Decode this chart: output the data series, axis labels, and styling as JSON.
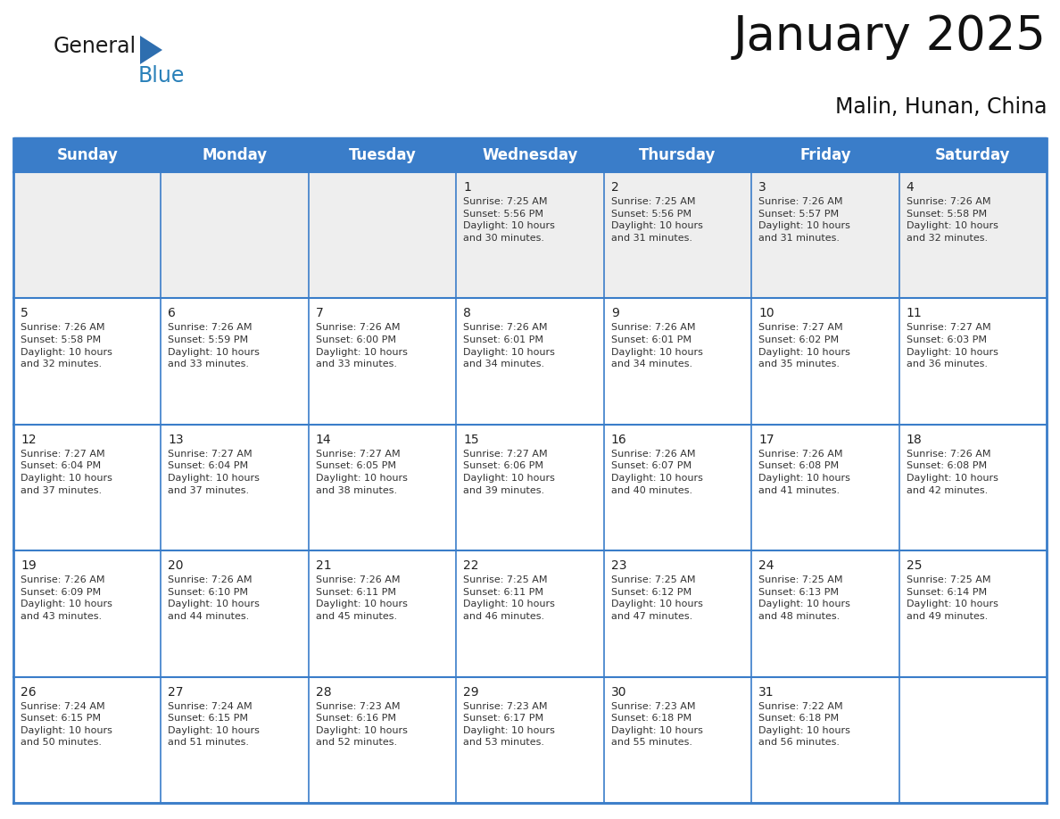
{
  "title": "January 2025",
  "subtitle": "Malin, Hunan, China",
  "header_color": "#3A7DC9",
  "header_text_color": "#FFFFFF",
  "border_color": "#3A7DC9",
  "logo_text_color": "#1a1a1a",
  "logo_blue_color": "#2980B9",
  "triangle_color": "#2E6EAF",
  "row1_bg": "#EEEEEE",
  "row_bg": "#FFFFFF",
  "day_names": [
    "Sunday",
    "Monday",
    "Tuesday",
    "Wednesday",
    "Thursday",
    "Friday",
    "Saturday"
  ],
  "title_fontsize": 38,
  "subtitle_fontsize": 17,
  "header_fontsize": 12,
  "day_num_fontsize": 10,
  "cell_text_fontsize": 8,
  "weeks": [
    [
      {
        "day": "",
        "info": ""
      },
      {
        "day": "",
        "info": ""
      },
      {
        "day": "",
        "info": ""
      },
      {
        "day": "1",
        "info": "Sunrise: 7:25 AM\nSunset: 5:56 PM\nDaylight: 10 hours\nand 30 minutes."
      },
      {
        "day": "2",
        "info": "Sunrise: 7:25 AM\nSunset: 5:56 PM\nDaylight: 10 hours\nand 31 minutes."
      },
      {
        "day": "3",
        "info": "Sunrise: 7:26 AM\nSunset: 5:57 PM\nDaylight: 10 hours\nand 31 minutes."
      },
      {
        "day": "4",
        "info": "Sunrise: 7:26 AM\nSunset: 5:58 PM\nDaylight: 10 hours\nand 32 minutes."
      }
    ],
    [
      {
        "day": "5",
        "info": "Sunrise: 7:26 AM\nSunset: 5:58 PM\nDaylight: 10 hours\nand 32 minutes."
      },
      {
        "day": "6",
        "info": "Sunrise: 7:26 AM\nSunset: 5:59 PM\nDaylight: 10 hours\nand 33 minutes."
      },
      {
        "day": "7",
        "info": "Sunrise: 7:26 AM\nSunset: 6:00 PM\nDaylight: 10 hours\nand 33 minutes."
      },
      {
        "day": "8",
        "info": "Sunrise: 7:26 AM\nSunset: 6:01 PM\nDaylight: 10 hours\nand 34 minutes."
      },
      {
        "day": "9",
        "info": "Sunrise: 7:26 AM\nSunset: 6:01 PM\nDaylight: 10 hours\nand 34 minutes."
      },
      {
        "day": "10",
        "info": "Sunrise: 7:27 AM\nSunset: 6:02 PM\nDaylight: 10 hours\nand 35 minutes."
      },
      {
        "day": "11",
        "info": "Sunrise: 7:27 AM\nSunset: 6:03 PM\nDaylight: 10 hours\nand 36 minutes."
      }
    ],
    [
      {
        "day": "12",
        "info": "Sunrise: 7:27 AM\nSunset: 6:04 PM\nDaylight: 10 hours\nand 37 minutes."
      },
      {
        "day": "13",
        "info": "Sunrise: 7:27 AM\nSunset: 6:04 PM\nDaylight: 10 hours\nand 37 minutes."
      },
      {
        "day": "14",
        "info": "Sunrise: 7:27 AM\nSunset: 6:05 PM\nDaylight: 10 hours\nand 38 minutes."
      },
      {
        "day": "15",
        "info": "Sunrise: 7:27 AM\nSunset: 6:06 PM\nDaylight: 10 hours\nand 39 minutes."
      },
      {
        "day": "16",
        "info": "Sunrise: 7:26 AM\nSunset: 6:07 PM\nDaylight: 10 hours\nand 40 minutes."
      },
      {
        "day": "17",
        "info": "Sunrise: 7:26 AM\nSunset: 6:08 PM\nDaylight: 10 hours\nand 41 minutes."
      },
      {
        "day": "18",
        "info": "Sunrise: 7:26 AM\nSunset: 6:08 PM\nDaylight: 10 hours\nand 42 minutes."
      }
    ],
    [
      {
        "day": "19",
        "info": "Sunrise: 7:26 AM\nSunset: 6:09 PM\nDaylight: 10 hours\nand 43 minutes."
      },
      {
        "day": "20",
        "info": "Sunrise: 7:26 AM\nSunset: 6:10 PM\nDaylight: 10 hours\nand 44 minutes."
      },
      {
        "day": "21",
        "info": "Sunrise: 7:26 AM\nSunset: 6:11 PM\nDaylight: 10 hours\nand 45 minutes."
      },
      {
        "day": "22",
        "info": "Sunrise: 7:25 AM\nSunset: 6:11 PM\nDaylight: 10 hours\nand 46 minutes."
      },
      {
        "day": "23",
        "info": "Sunrise: 7:25 AM\nSunset: 6:12 PM\nDaylight: 10 hours\nand 47 minutes."
      },
      {
        "day": "24",
        "info": "Sunrise: 7:25 AM\nSunset: 6:13 PM\nDaylight: 10 hours\nand 48 minutes."
      },
      {
        "day": "25",
        "info": "Sunrise: 7:25 AM\nSunset: 6:14 PM\nDaylight: 10 hours\nand 49 minutes."
      }
    ],
    [
      {
        "day": "26",
        "info": "Sunrise: 7:24 AM\nSunset: 6:15 PM\nDaylight: 10 hours\nand 50 minutes."
      },
      {
        "day": "27",
        "info": "Sunrise: 7:24 AM\nSunset: 6:15 PM\nDaylight: 10 hours\nand 51 minutes."
      },
      {
        "day": "28",
        "info": "Sunrise: 7:23 AM\nSunset: 6:16 PM\nDaylight: 10 hours\nand 52 minutes."
      },
      {
        "day": "29",
        "info": "Sunrise: 7:23 AM\nSunset: 6:17 PM\nDaylight: 10 hours\nand 53 minutes."
      },
      {
        "day": "30",
        "info": "Sunrise: 7:23 AM\nSunset: 6:18 PM\nDaylight: 10 hours\nand 55 minutes."
      },
      {
        "day": "31",
        "info": "Sunrise: 7:22 AM\nSunset: 6:18 PM\nDaylight: 10 hours\nand 56 minutes."
      },
      {
        "day": "",
        "info": ""
      }
    ]
  ]
}
